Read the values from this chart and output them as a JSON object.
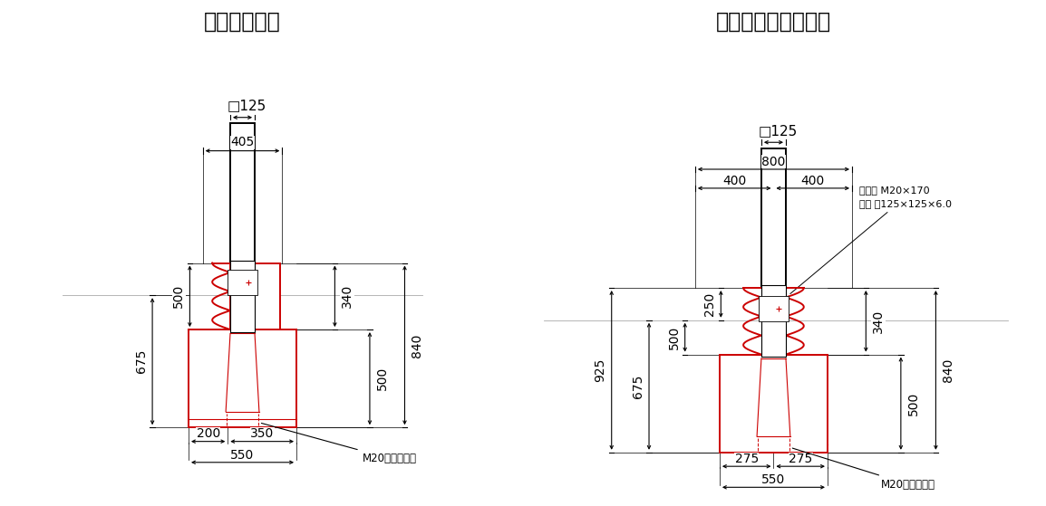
{
  "bg_color": "#ffffff",
  "line_color": "#000000",
  "red_color": "#cc0000",
  "title1": "》路側仕様《",
  "title2": "》中央分離帯仕様《",
  "title_fontsize": 17,
  "dim_fontsize": 10,
  "label_fontsize": 8.5,
  "title1_text": "【路側仕様】",
  "title2_text": "【中央分離帯仕様】"
}
